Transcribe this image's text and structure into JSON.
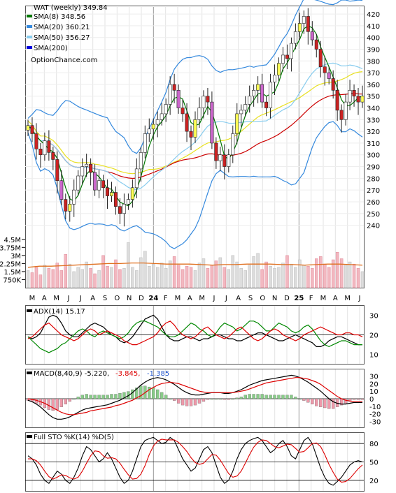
{
  "chart_data": [
    {
      "type": "candlestick",
      "title": "WAT (weekly) 349.84",
      "watermark": "OptionChance.com",
      "x_labels": [
        "M",
        "A",
        "M",
        "J",
        "J",
        "A",
        "S",
        "O",
        "N",
        "D",
        "24",
        "F",
        "M",
        "A",
        "M",
        "J",
        "J",
        "A",
        "S",
        "O",
        "N",
        "D",
        "25",
        "F",
        "M",
        "A",
        "M",
        "J"
      ],
      "y_ticks": [
        240,
        250,
        260,
        270,
        280,
        290,
        300,
        310,
        320,
        330,
        340,
        350,
        360,
        370,
        380,
        390,
        400,
        410,
        420
      ],
      "ylim": [
        232,
        426
      ],
      "legend": [
        {
          "name": "SMA(8) 348.56",
          "color": "#007700"
        },
        {
          "name": "SMA(20) 360.21",
          "color": "#3388dd"
        },
        {
          "name": "SMA(50) 356.27",
          "color": "#88ccee"
        },
        {
          "name": "SMA(200)",
          "color": "#0000dd"
        }
      ],
      "close_series": [
        325,
        318,
        305,
        300,
        312,
        302,
        296,
        278,
        262,
        252,
        258,
        270,
        282,
        290,
        292,
        285,
        270,
        278,
        272,
        265,
        268,
        256,
        250,
        258,
        262,
        272,
        288,
        302,
        318,
        322,
        326,
        330,
        335,
        343,
        360,
        355,
        340,
        335,
        320,
        315,
        330,
        340,
        350,
        345,
        310,
        295,
        300,
        290,
        300,
        318,
        335,
        338,
        343,
        350,
        355,
        360,
        345,
        340,
        362,
        368,
        378,
        385,
        382,
        395,
        405,
        412,
        418,
        405,
        398,
        390,
        375,
        370,
        365,
        355,
        338,
        330,
        345,
        355,
        350,
        345,
        350
      ]
    },
    {
      "type": "bar",
      "title": "Volume",
      "y_ticks": [
        "4.5M",
        "3.75M",
        "3M",
        "2.25M",
        "1.5M",
        "750K"
      ],
      "tick_values": [
        4.5,
        3.75,
        3,
        2.25,
        1.5,
        0.75
      ],
      "ylim": [
        0,
        5.2
      ],
      "values": [
        1.6,
        1.4,
        1.9,
        1.2,
        2.1,
        1.8,
        1.7,
        2.3,
        1.6,
        3.1,
        2.2,
        1.5,
        1.9,
        1.7,
        2.4,
        1.8,
        1.3,
        1.6,
        3.0,
        2.0,
        1.9,
        2.6,
        1.7,
        1.8,
        4.2,
        1.9,
        1.6,
        2.8,
        3.4,
        2.0,
        2.2,
        1.9,
        2.3,
        1.8,
        2.5,
        2.9,
        2.1,
        1.7,
        2.0,
        1.9,
        1.6,
        2.3,
        2.7,
        1.8,
        2.1,
        2.5,
        2.8,
        1.9,
        1.7,
        3.0,
        2.4,
        1.8,
        1.6,
        2.1,
        2.9,
        3.2,
        1.7,
        2.4,
        2.0,
        1.8,
        1.9,
        2.3,
        3.0,
        2.2,
        1.9,
        2.6,
        2.1,
        2.0,
        1.8,
        2.7,
        2.9,
        2.2,
        1.9,
        2.6,
        3.3,
        2.7,
        2.1,
        2.4,
        2.2,
        1.8,
        1.5
      ],
      "average": [
        1.9,
        2.0,
        2.0,
        2.05,
        2.1,
        2.15,
        2.2,
        2.25,
        2.25,
        2.3,
        2.3,
        2.25,
        2.2,
        2.2,
        2.2,
        2.15,
        2.1,
        2.15,
        2.15,
        2.2,
        2.2,
        2.2,
        2.15,
        2.15,
        2.1,
        2.15,
        2.2,
        2.2,
        2.15,
        2.1
      ]
    },
    {
      "type": "line",
      "title": "ADX(14) 15.17",
      "y_ticks": [
        10,
        20,
        30
      ],
      "ylim": [
        6,
        34
      ],
      "series": [
        {
          "color": "#000000",
          "values": [
            19,
            18,
            19,
            21,
            25,
            29,
            30,
            29,
            26,
            22,
            20,
            19,
            19,
            21,
            23,
            25,
            26,
            25,
            24,
            22,
            20,
            19,
            17,
            16,
            17,
            19,
            22,
            25,
            28,
            29,
            30,
            28,
            24,
            20,
            18,
            17,
            17,
            18,
            19,
            19,
            18,
            17,
            18,
            18,
            19,
            20,
            20,
            19,
            18,
            18,
            17,
            17,
            18,
            19,
            20,
            21,
            21,
            20,
            19,
            18,
            17,
            17,
            18,
            19,
            20,
            19,
            18,
            17,
            16,
            14,
            14,
            15,
            17,
            18,
            19,
            19,
            18,
            17,
            16,
            15,
            15
          ]
        },
        {
          "color": "#008800",
          "values": [
            19,
            17,
            15,
            13,
            12,
            11,
            12,
            13,
            15,
            16,
            18,
            20,
            22,
            23,
            22,
            20,
            19,
            21,
            22,
            21,
            20,
            19,
            18,
            19,
            21,
            24,
            26,
            27,
            27,
            26,
            25,
            24,
            22,
            20,
            19,
            19,
            20,
            22,
            24,
            26,
            25,
            23,
            22,
            20,
            19,
            21,
            24,
            26,
            25,
            24,
            22,
            23,
            25,
            27,
            27,
            26,
            24,
            22,
            22,
            24,
            26,
            25,
            24,
            22,
            21,
            22,
            24,
            25,
            23,
            20,
            17,
            15,
            14,
            15,
            16,
            17,
            17,
            16,
            15,
            15,
            15
          ]
        },
        {
          "color": "#dd0000",
          "values": [
            18,
            19,
            21,
            23,
            25,
            26,
            24,
            22,
            20,
            19,
            18,
            17,
            18,
            20,
            22,
            23,
            22,
            20,
            21,
            22,
            21,
            20,
            19,
            17,
            16,
            15,
            15,
            16,
            17,
            18,
            19,
            21,
            24,
            26,
            27,
            25,
            22,
            20,
            19,
            18,
            19,
            21,
            23,
            24,
            22,
            20,
            19,
            18,
            19,
            21,
            23,
            24,
            22,
            20,
            18,
            17,
            18,
            20,
            22,
            23,
            22,
            20,
            19,
            18,
            17,
            18,
            20,
            21,
            22,
            23,
            24,
            23,
            22,
            21,
            20,
            20,
            21,
            21,
            20,
            20,
            19
          ]
        }
      ]
    },
    {
      "type": "line",
      "title": "MACD(8,40,9) -5.220,",
      "values_printed": [
        "-3.845,",
        "-1.385"
      ],
      "y_ticks": [
        30,
        20,
        10,
        0,
        -10,
        -20,
        -30
      ],
      "ylim": [
        -36,
        36
      ],
      "series": [
        {
          "color": "#000000",
          "values": [
            -2,
            -4,
            -7,
            -11,
            -16,
            -21,
            -25,
            -27,
            -27,
            -26,
            -24,
            -21,
            -18,
            -15,
            -13,
            -12,
            -11,
            -10,
            -9,
            -8,
            -6,
            -4,
            -2,
            1,
            4,
            8,
            13,
            18,
            22,
            25,
            27,
            28,
            27,
            25,
            22,
            19,
            15,
            11,
            8,
            6,
            5,
            5,
            6,
            7,
            8,
            8,
            8,
            7,
            7,
            8,
            10,
            12,
            15,
            18,
            20,
            22,
            24,
            25,
            26,
            27,
            28,
            29,
            30,
            31,
            30,
            28,
            25,
            22,
            18,
            14,
            10,
            5,
            0,
            -4,
            -6,
            -7,
            -7,
            -6,
            -5,
            -5,
            -5
          ]
        },
        {
          "color": "#dd0000",
          "values": [
            0,
            -1,
            -2,
            -4,
            -6,
            -9,
            -12,
            -15,
            -18,
            -20,
            -21,
            -21,
            -20,
            -19,
            -18,
            -16,
            -15,
            -14,
            -13,
            -12,
            -11,
            -9,
            -8,
            -6,
            -4,
            -2,
            1,
            4,
            8,
            12,
            15,
            18,
            20,
            21,
            22,
            21,
            20,
            18,
            16,
            14,
            12,
            10,
            9,
            8,
            8,
            8,
            8,
            8,
            8,
            8,
            9,
            10,
            11,
            13,
            15,
            17,
            19,
            21,
            22,
            23,
            24,
            25,
            26,
            27,
            28,
            28,
            27,
            26,
            24,
            22,
            19,
            15,
            11,
            7,
            3,
            0,
            -2,
            -3,
            -4,
            -4,
            -4
          ]
        }
      ]
    },
    {
      "type": "line",
      "title": "Full STO %K(14) %D(5)",
      "y_ticks": [
        80,
        50,
        20
      ],
      "ylim": [
        5,
        95
      ],
      "series": [
        {
          "color": "#000000",
          "values": [
            60,
            55,
            45,
            30,
            20,
            15,
            25,
            35,
            30,
            20,
            15,
            25,
            40,
            60,
            75,
            70,
            60,
            50,
            55,
            65,
            55,
            40,
            25,
            15,
            20,
            35,
            55,
            75,
            85,
            88,
            90,
            85,
            80,
            82,
            90,
            85,
            70,
            55,
            45,
            35,
            40,
            55,
            70,
            75,
            65,
            45,
            25,
            15,
            20,
            35,
            55,
            70,
            80,
            85,
            88,
            90,
            85,
            75,
            65,
            70,
            80,
            85,
            75,
            60,
            55,
            70,
            85,
            90,
            80,
            60,
            40,
            25,
            15,
            12,
            18,
            25,
            35,
            45,
            50,
            52,
            50
          ]
        },
        {
          "color": "#dd0000",
          "values": [
            55,
            55,
            52,
            45,
            35,
            26,
            22,
            25,
            29,
            28,
            24,
            22,
            25,
            35,
            48,
            60,
            68,
            67,
            60,
            56,
            57,
            55,
            48,
            38,
            29,
            22,
            23,
            30,
            44,
            62,
            76,
            84,
            87,
            86,
            86,
            86,
            82,
            75,
            67,
            57,
            49,
            46,
            48,
            55,
            62,
            61,
            53,
            42,
            31,
            25,
            27,
            35,
            48,
            62,
            74,
            82,
            86,
            85,
            80,
            75,
            73,
            76,
            79,
            78,
            72,
            66,
            67,
            73,
            80,
            81,
            75,
            62,
            46,
            33,
            22,
            17,
            18,
            23,
            31,
            39,
            45
          ]
        }
      ]
    }
  ]
}
